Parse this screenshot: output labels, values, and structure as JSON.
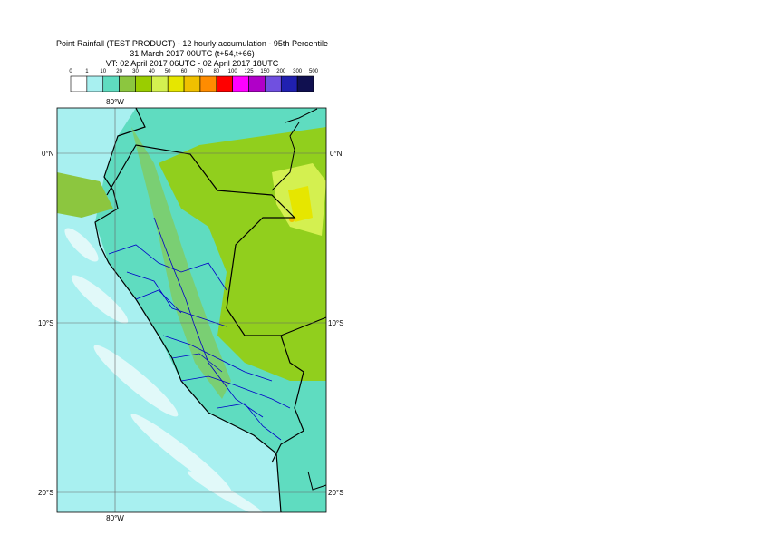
{
  "header": {
    "title": "Point Rainfall (TEST PRODUCT) - 12 hourly accumulation - 95th Percentile",
    "base_time": "31 March 2017 00UTC (t+54,t+66)",
    "valid_time": "VT: 02 April 2017 06UTC - 02 April 2017 18UTC"
  },
  "legend": {
    "labels": [
      "0",
      "1",
      "10",
      "20",
      "30",
      "40",
      "50",
      "60",
      "70",
      "80",
      "100",
      "125",
      "150",
      "200",
      "300",
      "500"
    ],
    "colors": [
      "#ffffff",
      "#a8f0f0",
      "#5fdcc0",
      "#8cc63f",
      "#9acd00",
      "#d4f050",
      "#e6e600",
      "#f0c000",
      "#ff8c00",
      "#ff0000",
      "#ff00ff",
      "#b000c8",
      "#7050e0",
      "#2020b0",
      "#101050"
    ]
  },
  "map": {
    "lon_labels": [
      "80°W",
      "80°W"
    ],
    "lat_labels_left": [
      "0°N",
      "10°S",
      "20°S"
    ],
    "lat_labels_right": [
      "0°N",
      "10°S",
      "20°S"
    ]
  }
}
